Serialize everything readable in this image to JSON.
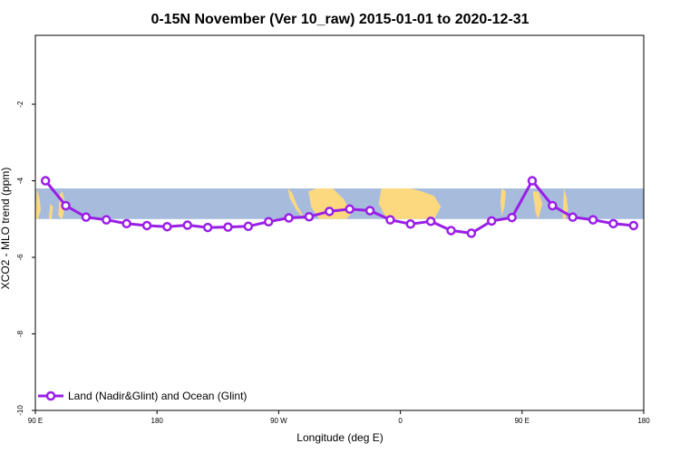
{
  "chart_data": {
    "type": "line",
    "title": "0-15N November (Ver 10_raw)   2015-01-01 to 2020-12-31",
    "xlabel": "Longitude (deg E)",
    "ylabel": "XCO2 - MLO trend (ppm)",
    "x_ticks": [
      {
        "value": 90,
        "label": "90 E"
      },
      {
        "value": 180,
        "label": "180"
      },
      {
        "value": 270,
        "label": "90 W"
      },
      {
        "value": 360,
        "label": "0"
      },
      {
        "value": 450,
        "label": "90 E"
      },
      {
        "value": 540,
        "label": "180"
      }
    ],
    "y_ticks": [
      {
        "value": -2,
        "label": "-2"
      },
      {
        "value": -4,
        "label": "-4"
      },
      {
        "value": -6,
        "label": "-6"
      },
      {
        "value": -8,
        "label": "-8"
      },
      {
        "value": -10,
        "label": "-10"
      }
    ],
    "xlim": [
      90,
      540
    ],
    "ylim": [
      -10,
      -0.2
    ],
    "legend_position": "bottom-left",
    "map_band": {
      "y_top": -4.2,
      "y_bottom": -5.0,
      "ocean_color": "#a7bcdd",
      "land_color": "#fcd97e"
    },
    "series": [
      {
        "name": "Land (Nadir&Glint) and Ocean (Glint)",
        "color": "#9a1fe6",
        "x": [
          97.5,
          112.5,
          127.5,
          142.5,
          157.5,
          172.5,
          187.5,
          202.5,
          217.5,
          232.5,
          247.5,
          262.5,
          277.5,
          292.5,
          307.5,
          322.5,
          337.5,
          352.5,
          367.5,
          382.5,
          397.5,
          412.5,
          427.5,
          442.5,
          457.5,
          472.5,
          487.5,
          502.5,
          517.5,
          532.5
        ],
        "y": [
          -4.0,
          -4.65,
          -4.95,
          -5.02,
          -5.12,
          -5.17,
          -5.2,
          -5.16,
          -5.22,
          -5.21,
          -5.19,
          -5.07,
          -4.97,
          -4.94,
          -4.8,
          -4.74,
          -4.78,
          -5.02,
          -5.13,
          -5.06,
          -5.3,
          -5.37,
          -5.05,
          -4.96,
          -4.0,
          -4.65,
          -4.95,
          -5.02,
          -5.12,
          -5.17
        ]
      }
    ]
  }
}
